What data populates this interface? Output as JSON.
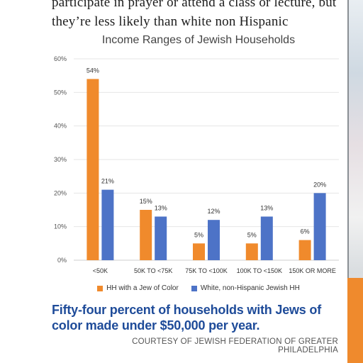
{
  "article": {
    "body_text": "participate in prayer or attend a class or lecture, but they’re less likely than white non Hispanic"
  },
  "chart_data": {
    "type": "bar",
    "title": "Income Ranges of Jewish Households",
    "categories": [
      "<50K",
      "50K TO <75K",
      "75K TO <100K",
      "100K TO <150K",
      "150K OR MORE"
    ],
    "series": [
      {
        "name": "HH with a Jew of Color",
        "values": [
          54,
          15,
          5,
          5,
          6
        ],
        "labels": [
          "54%",
          "15%",
          "5%",
          "5%",
          "6%"
        ],
        "color": "#f08a2c"
      },
      {
        "name": "White, non-Hispanic Jewish HH",
        "values": [
          21,
          13,
          12,
          13,
          20
        ],
        "labels": [
          "21%",
          "13%",
          "12%",
          "13%",
          "20%"
        ],
        "color": "#4d73c7"
      }
    ],
    "yticks": [
      "0%",
      "10%",
      "20%",
      "30%",
      "40%",
      "50%",
      "60%"
    ],
    "ylim": [
      0,
      60
    ],
    "grid": true,
    "legend": "bottom"
  },
  "caption": "Fifty-four percent of households with Jews of color made under $50,000 per year.",
  "credit": "COURTESY OF JEWISH FEDERATION OF GREATER PHILADELPHIA"
}
